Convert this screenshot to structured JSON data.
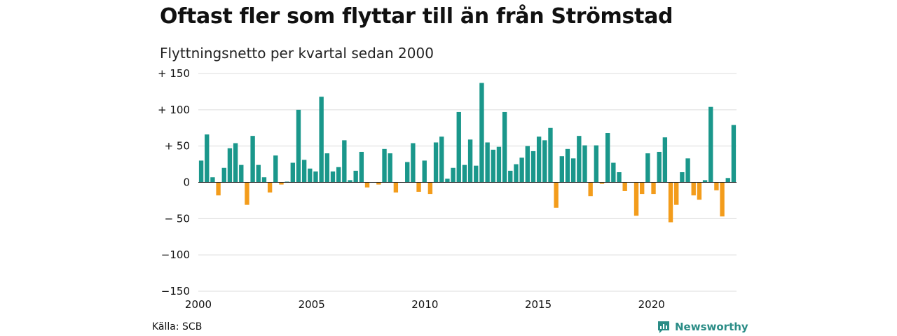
{
  "header": {
    "title": "Oftast fler som flyttar till än från Strömstad",
    "subtitle": "Flyttningsnetto per kvartal sedan 2000"
  },
  "footer": {
    "source": "Källa: SCB",
    "brand": "Newsworthy",
    "brand_icon": "bar-chart-bubble-icon"
  },
  "colors": {
    "positive": "#1a978b",
    "negative": "#f39c1b",
    "grid": "#dcdcdc",
    "brand": "#2a8c86"
  },
  "chart_data": {
    "type": "bar",
    "title": "Oftast fler som flyttar till än från Strömstad",
    "subtitle": "Flyttningsnetto per kvartal sedan 2000",
    "xlim": [
      2000,
      2023.75
    ],
    "ylim": [
      -150,
      150
    ],
    "x_ticks": [
      {
        "value": 2000,
        "label": "2000"
      },
      {
        "value": 2005,
        "label": "2005"
      },
      {
        "value": 2010,
        "label": "2010"
      },
      {
        "value": 2015,
        "label": "2015"
      },
      {
        "value": 2020,
        "label": "2020"
      }
    ],
    "y_ticks": [
      {
        "value": 150,
        "label": "+ 150"
      },
      {
        "value": 100,
        "label": "+ 100"
      },
      {
        "value": 50,
        "label": "+  50"
      },
      {
        "value": 0,
        "label": "0"
      },
      {
        "value": -50,
        "label": "− 50"
      },
      {
        "value": -100,
        "label": "−100"
      },
      {
        "value": -150,
        "label": "−150"
      }
    ],
    "grid": true,
    "series": [
      {
        "start_year": 2000,
        "frequency": "quarterly",
        "values": [
          30,
          66,
          7,
          -18,
          20,
          47,
          54,
          24,
          -31,
          64,
          24,
          7,
          -14,
          37,
          -3,
          1,
          27,
          100,
          31,
          19,
          15,
          118,
          40,
          15,
          21,
          58,
          3,
          16,
          42,
          -7,
          0,
          -3,
          46,
          40,
          -14,
          0,
          28,
          54,
          -13,
          30,
          -16,
          55,
          63,
          5,
          20,
          97,
          24,
          59,
          23,
          137,
          55,
          45,
          49,
          97,
          16,
          25,
          34,
          50,
          43,
          63,
          58,
          75,
          -35,
          36,
          46,
          33,
          64,
          51,
          -19,
          51,
          -2,
          68,
          27,
          14,
          -12,
          0,
          -46,
          -16,
          40,
          -16,
          42,
          62,
          -55,
          -31,
          14,
          33,
          -18,
          -24,
          3,
          104,
          -11,
          -47,
          6,
          79
        ]
      }
    ]
  }
}
